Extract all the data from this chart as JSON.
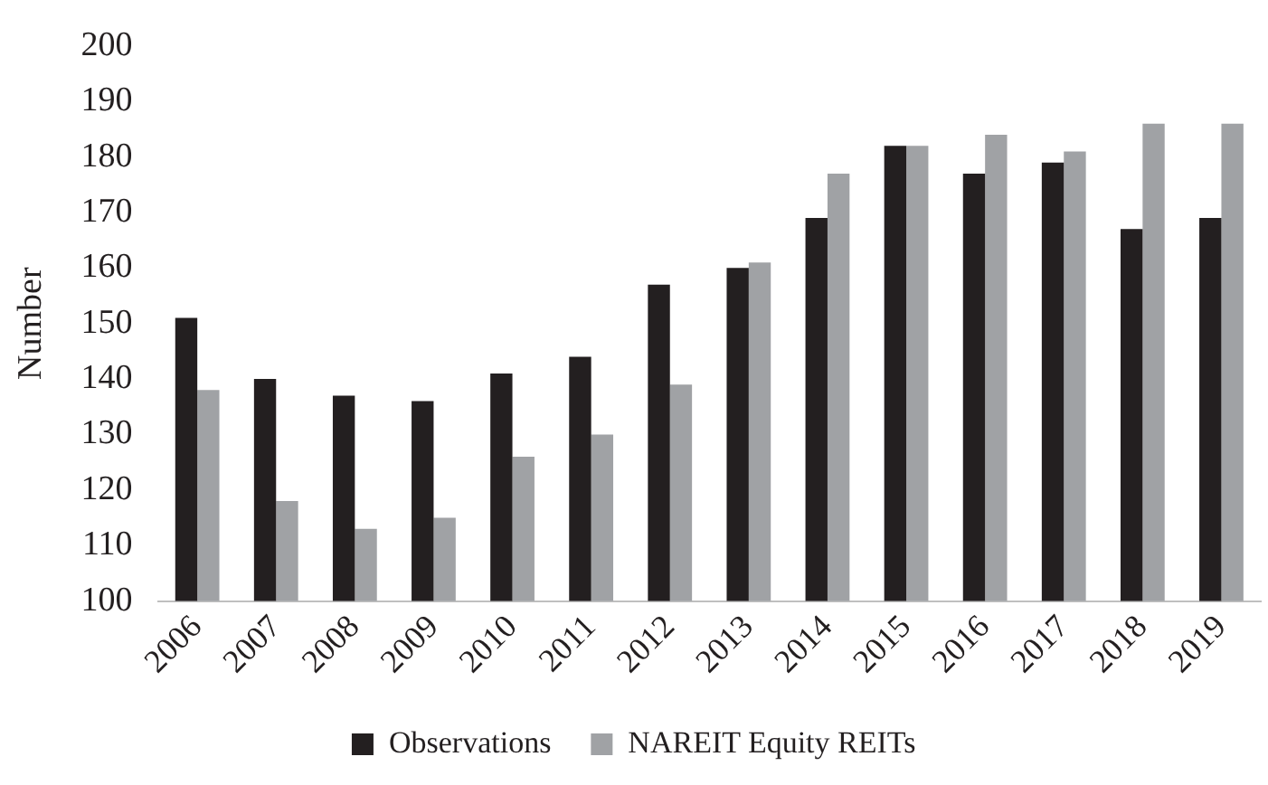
{
  "chart_data": {
    "type": "bar",
    "ylabel": "Number",
    "categories": [
      "2006",
      "2007",
      "2008",
      "2009",
      "2010",
      "2011",
      "2012",
      "2013",
      "2014",
      "2015",
      "2016",
      "2017",
      "2018",
      "2019"
    ],
    "series": [
      {
        "name": "Observations",
        "color": "#231f20",
        "values": [
          151,
          140,
          137,
          136,
          141,
          144,
          157,
          160,
          169,
          182,
          177,
          179,
          167,
          169
        ]
      },
      {
        "name": "NAREIT Equity REITs",
        "color": "#a0a2a5",
        "values": [
          138,
          118,
          113,
          115,
          126,
          130,
          139,
          161,
          177,
          182,
          184,
          181,
          186,
          186
        ]
      }
    ],
    "ylim": [
      100,
      200
    ],
    "yticks": [
      100,
      110,
      120,
      130,
      140,
      150,
      160,
      170,
      180,
      190,
      200
    ],
    "grid": false,
    "legend": "bottom"
  }
}
